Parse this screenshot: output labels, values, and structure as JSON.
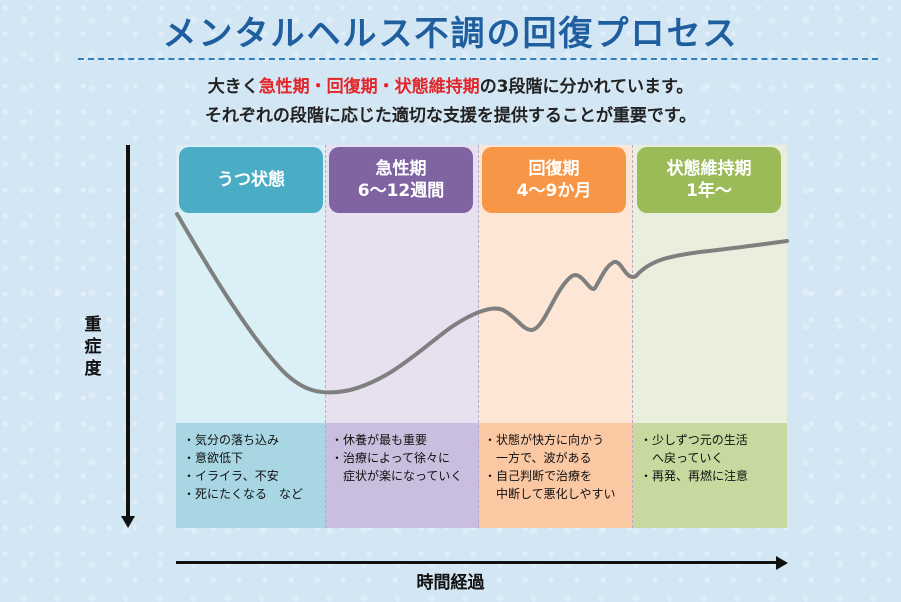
{
  "title": "メンタルヘルス不調の回復プロセス",
  "intro": {
    "line1_prefix": "大きく",
    "line1_highlight": "急性期・回復期・状態維持期",
    "line1_suffix": "の3段階に分かれています。",
    "line2": "それぞれの段階に応じた適切な支援を提供することが重要です。"
  },
  "stages": [
    {
      "name": "うつ状態",
      "period": "",
      "color": "#4bacc6"
    },
    {
      "name": "急性期",
      "period": "6～12週間",
      "color": "#8064a2"
    },
    {
      "name": "回復期",
      "period": "4～9か月",
      "color": "#f79646"
    },
    {
      "name": "状態維持期",
      "period": "1年～",
      "color": "#9bbb59"
    }
  ],
  "notes": {
    "depression": [
      "・気分の落ち込み",
      "・意欲低下",
      "・イライラ、不安",
      "・死にたくなる　など"
    ],
    "acute": [
      "・休養が最も重要",
      "・治療によって徐々に",
      "症状が楽になっていく"
    ],
    "recovery": [
      "・状態が快方に向かう",
      "一方で、波がある",
      "・自己判断で治療を",
      "中断して悪化しやすい"
    ],
    "maintenance": [
      "・少しずつ元の生活",
      "へ戻っていく",
      "・再発、再燃に注意"
    ]
  },
  "axes": {
    "y_label": "重症度",
    "x_label": "時間経過"
  },
  "curve_color": "#7f7f7f"
}
